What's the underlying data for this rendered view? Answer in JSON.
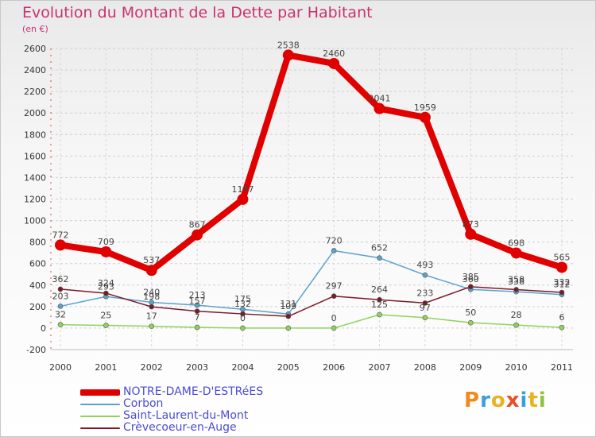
{
  "header": {
    "title": "Evolution du Montant de la Dette par Habitant",
    "unit": "(en €)"
  },
  "logo": {
    "text": "Proxiti",
    "letters": [
      "P",
      "r",
      "o",
      "x",
      "i",
      "t",
      "i"
    ]
  },
  "chart_data": {
    "type": "line",
    "title": "Evolution du Montant de la Dette par Habitant",
    "subtitle": "(en €)",
    "xlabel": "",
    "ylabel": "",
    "x": [
      "2000",
      "2001",
      "2002",
      "2003",
      "2004",
      "2005",
      "2006",
      "2007",
      "2008",
      "2009",
      "2010",
      "2011"
    ],
    "ylim": [
      -200,
      2600
    ],
    "yticks": [
      -200,
      0,
      200,
      400,
      600,
      800,
      1000,
      1200,
      1400,
      1600,
      1800,
      2000,
      2200,
      2400,
      2600
    ],
    "grid": true,
    "legend_position": "bottom-left",
    "series": [
      {
        "name": "NOTRE-DAME-D'ESTRéES",
        "color": "#e00000",
        "values": [
          772,
          709,
          537,
          867,
          1197,
          2538,
          2460,
          2041,
          1959,
          873,
          698,
          565
        ],
        "labels": [
          "772",
          "709",
          "537",
          "867",
          "1197",
          "2538",
          "2460",
          "2041",
          "1959",
          "873",
          "698",
          "565"
        ]
      },
      {
        "name": "Corbon",
        "color": "#5ba3cc",
        "values": [
          203,
          293,
          240,
          213,
          175,
          131,
          720,
          652,
          493,
          360,
          338,
          312
        ],
        "labels": [
          "203",
          "293",
          "240",
          "213",
          "175",
          "131",
          "720",
          "652",
          "493",
          "360",
          "338",
          "312"
        ]
      },
      {
        "name": "Saint-Laurent-du-Mont",
        "color": "#8fd35a",
        "values": [
          32,
          25,
          17,
          7,
          0,
          0,
          0,
          125,
          97,
          50,
          28,
          6
        ],
        "labels": [
          "32",
          "25",
          "17",
          "7",
          "0",
          "",
          "0",
          "125",
          "97",
          "50",
          "28",
          "6"
        ]
      },
      {
        "name": "Crèvecoeur-en-Auge",
        "color": "#7a1a2a",
        "values": [
          362,
          324,
          198,
          157,
          132,
          109,
          297,
          264,
          233,
          385,
          358,
          332
        ],
        "labels": [
          "362",
          "324",
          "198",
          "157",
          "132",
          "109",
          "297",
          "264",
          "233",
          "385",
          "358",
          "332"
        ]
      }
    ]
  }
}
